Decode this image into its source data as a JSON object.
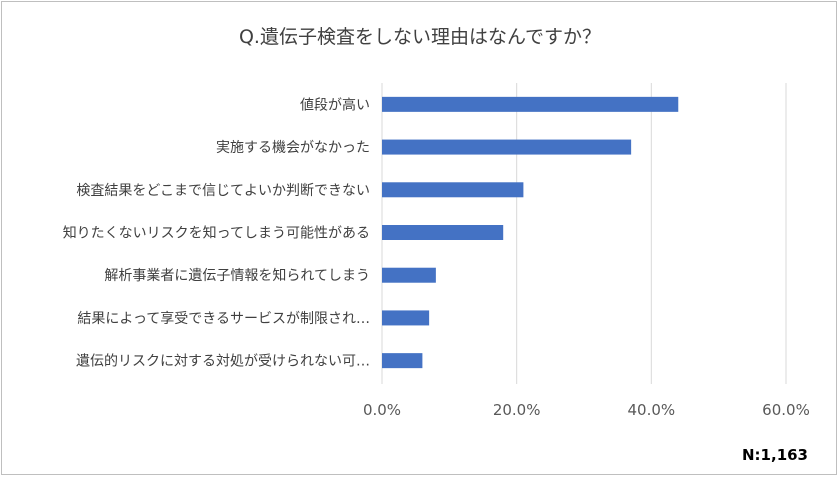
{
  "title": "Q.遺伝子検査をしない理由はなんですか？",
  "note": "N:1,163",
  "colors": {
    "bar": "#4472c4",
    "grid": "#d9d9d9",
    "text": "#404040"
  },
  "chart_data": {
    "type": "bar",
    "orientation": "horizontal",
    "categories": [
      "値段が高い",
      "実施する機会がなかった",
      "検査結果をどこまで信じてよいか判断できない",
      "知りたくないリスクを知ってしまう可能性がある",
      "解析事業者に遺伝子情報を知られてしまう",
      "結果によって享受できるサービスが制限され…",
      "遺伝的リスクに対する対処が受けられない可…"
    ],
    "values": [
      44.0,
      37.0,
      21.0,
      18.0,
      8.0,
      7.0,
      6.0
    ],
    "xlim": [
      0,
      60
    ],
    "xticks": [
      0,
      20,
      40,
      60
    ],
    "xtick_labels": [
      "0.0%",
      "20.0%",
      "40.0%",
      "60.0%"
    ],
    "grid": true
  }
}
